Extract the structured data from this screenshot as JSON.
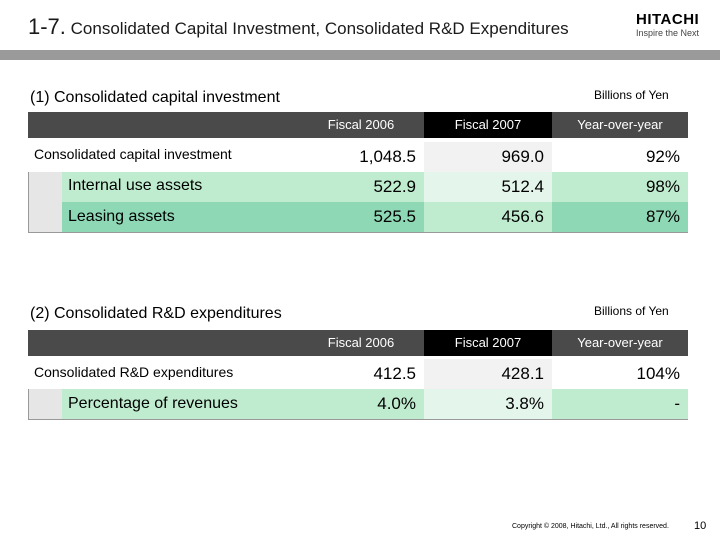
{
  "header": {
    "title_num": "1-7.",
    "title_text": "Consolidated Capital Investment, Consolidated R&D Expenditures",
    "logo_brand": "HITACHI",
    "logo_tagline": "Inspire the Next"
  },
  "capex": {
    "title": "(1) Consolidated capital investment",
    "unit": "Billions of Yen",
    "columns": [
      "Fiscal 2006",
      "Fiscal 2007",
      "Year-over-year"
    ],
    "rows": [
      {
        "label": "Consolidated capital investment",
        "values": [
          "1,048.5",
          "969.0",
          "92%"
        ]
      },
      {
        "label": "Internal use assets",
        "values": [
          "522.9",
          "512.4",
          "98%"
        ]
      },
      {
        "label": "Leasing assets",
        "values": [
          "525.5",
          "456.6",
          "87%"
        ]
      }
    ]
  },
  "rnd": {
    "title": "(2) Consolidated R&D expenditures",
    "unit": "Billions of Yen",
    "columns": [
      "Fiscal 2006",
      "Fiscal 2007",
      "Year-over-year"
    ],
    "rows": [
      {
        "label": "Consolidated R&D expenditures",
        "values": [
          "412.5",
          "428.1",
          "104%"
        ]
      },
      {
        "label": "Percentage of revenues",
        "values": [
          "4.0%",
          "3.8%",
          "-"
        ]
      }
    ]
  },
  "footer": {
    "copyright": "Copyright © 2008, Hitachi, Ltd., All rights reserved.",
    "page": "10"
  }
}
